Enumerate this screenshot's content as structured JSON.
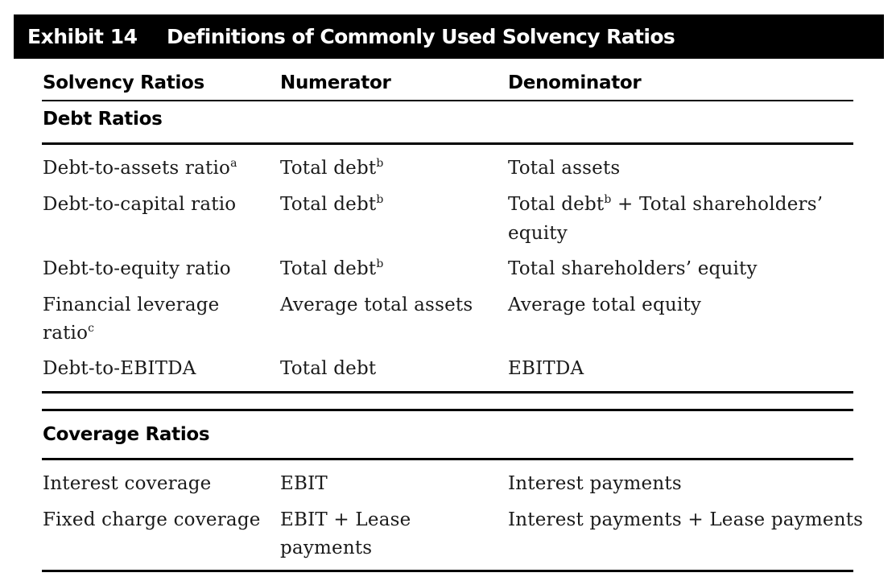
{
  "exhibit": {
    "number": "Exhibit 14",
    "title": "Definitions of Commonly Used Solvency Ratios"
  },
  "columns": [
    "Solvency Ratios",
    "Numerator",
    "Denominator"
  ],
  "sections": [
    {
      "heading": "Debt Ratios",
      "rows": [
        {
          "ratio": "Debt-to-assets ratio",
          "ratio_sup": "a",
          "numerator": "Total debt",
          "numerator_sup": "b",
          "denominator": "Total assets"
        },
        {
          "ratio": "Debt-to-capital ratio",
          "numerator": "Total debt",
          "numerator_sup": "b",
          "denominator_part1": "Total debt",
          "denominator_sup": "b",
          "denominator_part2": " + Total shareholders’",
          "denominator_line2": "equity"
        },
        {
          "ratio": "Debt-to-equity ratio",
          "numerator": "Total debt",
          "numerator_sup": "b",
          "denominator": "Total shareholders’ equity"
        },
        {
          "ratio_line1": "Financial leverage",
          "ratio_line2": "ratio",
          "ratio_sup": "c",
          "numerator": "Average total assets",
          "denominator": "Average total equity"
        },
        {
          "ratio": "Debt-to-EBITDA",
          "numerator": "Total debt",
          "denominator": "EBITDA"
        }
      ]
    },
    {
      "heading": "Coverage Ratios",
      "rows": [
        {
          "ratio": "Interest coverage",
          "numerator": "EBIT",
          "denominator": "Interest payments"
        },
        {
          "ratio": "Fixed charge coverage",
          "numerator_line1": "EBIT + Lease",
          "numerator_line2": "payments",
          "denominator": "Interest payments + Lease payments"
        }
      ]
    }
  ]
}
